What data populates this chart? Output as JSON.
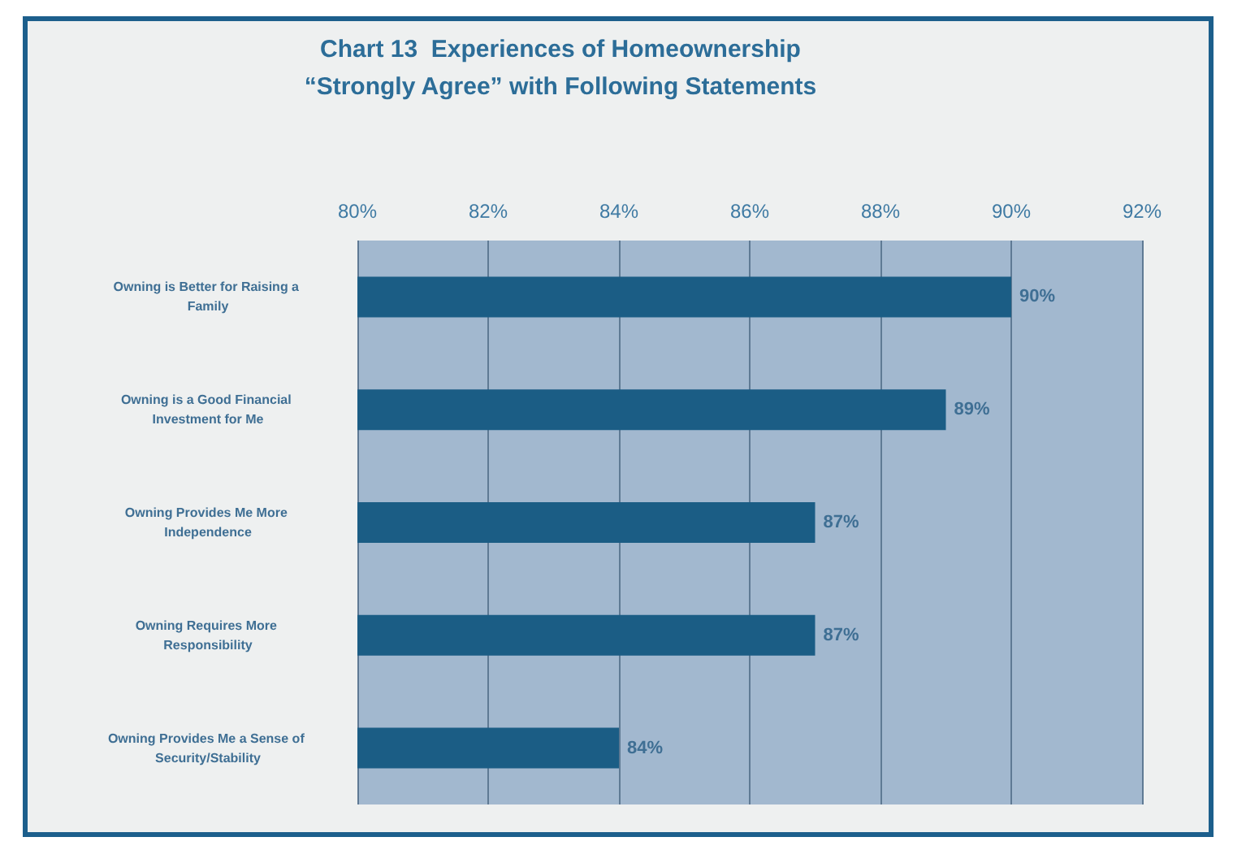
{
  "chart_data": {
    "type": "bar",
    "orientation": "horizontal",
    "title": "Chart 13  Experiences of Homeownership",
    "subtitle": "“Strongly Agree” with Following Statements",
    "categories": [
      "Owning is Better for Raising a Family",
      "Owning is a Good Financial Investment for Me",
      "Owning Provides Me More Independence",
      "Owning Requires More Responsibility",
      "Owning Provides Me a Sense of Security/Stability"
    ],
    "values": [
      90,
      89,
      87,
      87,
      84
    ],
    "value_labels": [
      "90%",
      "89%",
      "87%",
      "87%",
      "84%"
    ],
    "color": "#1b5d85",
    "xlim": [
      80,
      92
    ],
    "xticks": [
      {
        "value": 80,
        "label": "80%"
      },
      {
        "value": 82,
        "label": "82%"
      },
      {
        "value": 84,
        "label": "84%"
      },
      {
        "value": 86,
        "label": "86%"
      },
      {
        "value": 88,
        "label": "88%"
      },
      {
        "value": 90,
        "label": "90%"
      },
      {
        "value": 92,
        "label": "92%"
      }
    ],
    "grid": "x"
  }
}
